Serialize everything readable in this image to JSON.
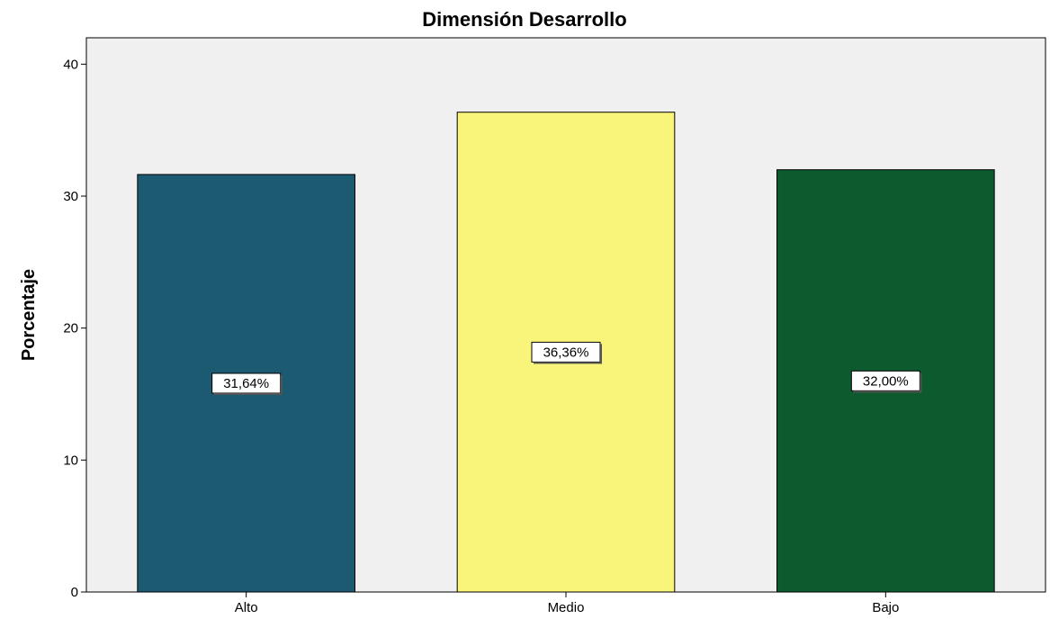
{
  "chart_data": {
    "type": "bar",
    "title": "Dimensión Desarrollo",
    "xlabel": "",
    "ylabel": "Porcentaje",
    "categories": [
      "Alto",
      "Medio",
      "Bajo"
    ],
    "values": [
      31.64,
      36.36,
      32.0
    ],
    "data_labels": [
      "31,64%",
      "36,36%",
      "32,00%"
    ],
    "colors": [
      "#1c5a72",
      "#f8f57a",
      "#0c5a2e"
    ],
    "ylim": [
      0,
      42
    ],
    "yticks": [
      0,
      10,
      20,
      30,
      40
    ],
    "ytick_labels": [
      "0",
      "10",
      "20",
      "30",
      "40"
    ],
    "grid": false,
    "plot_background": "#f0f0f0"
  }
}
